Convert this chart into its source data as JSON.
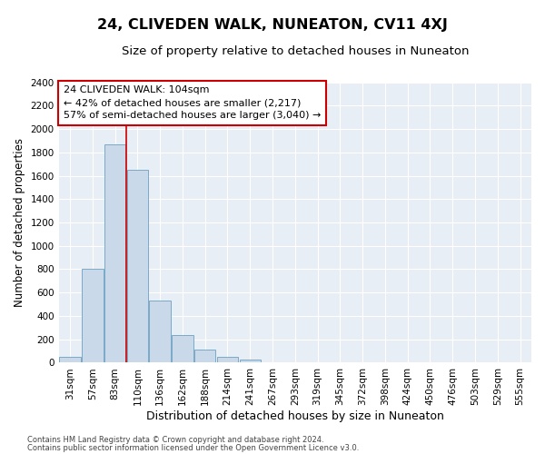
{
  "title": "24, CLIVEDEN WALK, NUNEATON, CV11 4XJ",
  "subtitle": "Size of property relative to detached houses in Nuneaton",
  "xlabel": "Distribution of detached houses by size in Nuneaton",
  "ylabel": "Number of detached properties",
  "categories": [
    "31sqm",
    "57sqm",
    "83sqm",
    "110sqm",
    "136sqm",
    "162sqm",
    "188sqm",
    "214sqm",
    "241sqm",
    "267sqm",
    "293sqm",
    "319sqm",
    "345sqm",
    "372sqm",
    "398sqm",
    "424sqm",
    "450sqm",
    "476sqm",
    "503sqm",
    "529sqm",
    "555sqm"
  ],
  "values": [
    50,
    800,
    1870,
    1650,
    530,
    240,
    110,
    50,
    30,
    5,
    5,
    2,
    0,
    0,
    0,
    0,
    0,
    0,
    0,
    0,
    0
  ],
  "bar_color": "#c9d9ea",
  "bar_edge_color": "#7aaac8",
  "vline_color": "#cc0000",
  "vline_x": 2.5,
  "ylim": [
    0,
    2400
  ],
  "yticks": [
    0,
    200,
    400,
    600,
    800,
    1000,
    1200,
    1400,
    1600,
    1800,
    2000,
    2200,
    2400
  ],
  "annotation_line1": "24 CLIVEDEN WALK: 104sqm",
  "annotation_line2": "← 42% of detached houses are smaller (2,217)",
  "annotation_line3": "57% of semi-detached houses are larger (3,040) →",
  "annotation_box_color": "white",
  "annotation_box_edge": "#cc0000",
  "footer1": "Contains HM Land Registry data © Crown copyright and database right 2024.",
  "footer2": "Contains public sector information licensed under the Open Government Licence v3.0.",
  "plot_bg_color": "#e8eef5",
  "grid_color": "#ffffff",
  "title_fontsize": 11.5,
  "subtitle_fontsize": 9.5,
  "ylabel_fontsize": 8.5,
  "xlabel_fontsize": 9,
  "tick_fontsize": 7.5,
  "annotation_fontsize": 8,
  "footer_fontsize": 6
}
